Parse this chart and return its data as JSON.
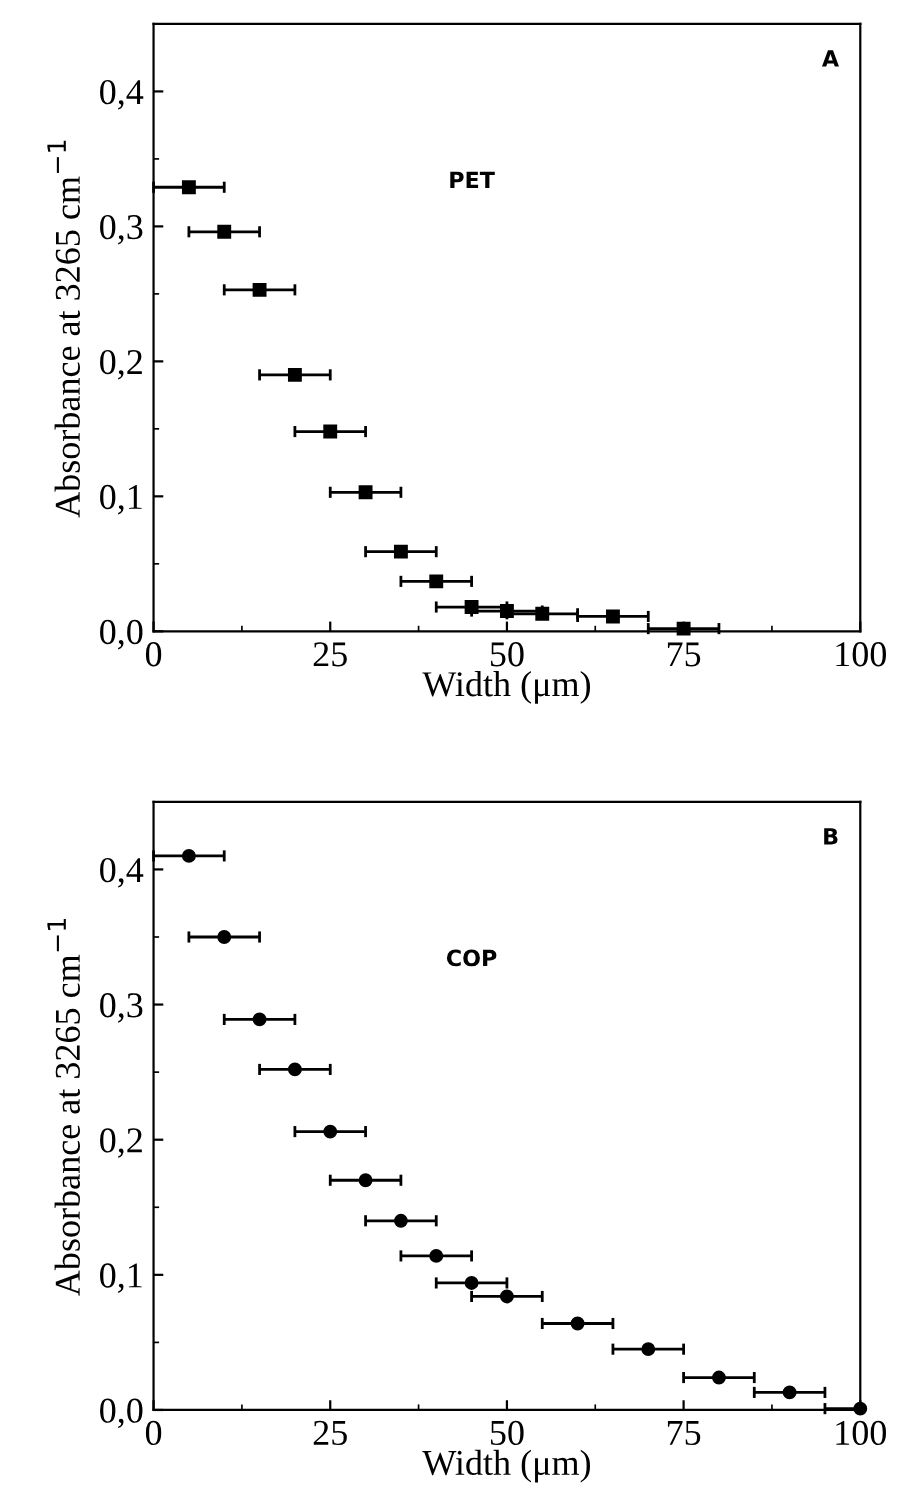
{
  "chart_data": [
    {
      "type": "scatter",
      "xlabel": "Width (μm)",
      "ylabel": "Absorbance at 3265 cm$^{−1}$",
      "marker": "square",
      "x": [
        5,
        10,
        15,
        20,
        25,
        30,
        35,
        40,
        45,
        50,
        55,
        65,
        75
      ],
      "values": [
        0.329,
        0.296,
        0.253,
        0.19,
        0.148,
        0.103,
        0.059,
        0.037,
        0.018,
        0.015,
        0.013,
        0.011,
        0.002
      ],
      "xerrors": [
        5,
        5,
        5,
        5,
        5,
        5,
        5,
        5,
        5,
        5,
        5,
        5,
        5
      ],
      "color": "#000000",
      "xlim": [
        0,
        100
      ],
      "xticks": [
        0,
        25,
        50,
        75,
        100
      ],
      "ylim": [
        0,
        0.45
      ],
      "yticks": [
        {
          "value": 0,
          "label": "0,0"
        },
        {
          "value": 0.1,
          "label": "0,1"
        },
        {
          "value": 0.2,
          "label": "0,2"
        },
        {
          "value": 0.3,
          "label": "0,3"
        },
        {
          "value": 0.4,
          "label": "0,4"
        }
      ],
      "annotations": [
        "A",
        "PET"
      ],
      "grid": false
    },
    {
      "type": "scatter",
      "xlabel": "Width (μm)",
      "ylabel": "Absorbance at 3265 cm$^{−1}$",
      "marker": "circle",
      "x": [
        5,
        10,
        15,
        20,
        25,
        30,
        35,
        40,
        45,
        50,
        60,
        70,
        80,
        90,
        100
      ],
      "values": [
        0.41,
        0.35,
        0.289,
        0.252,
        0.206,
        0.17,
        0.14,
        0.114,
        0.094,
        0.084,
        0.064,
        0.045,
        0.024,
        0.013,
        0.001
      ],
      "xerrors": [
        5,
        5,
        5,
        5,
        5,
        5,
        5,
        5,
        5,
        5,
        5,
        5,
        5,
        5,
        [
          95,
          100
        ]
      ],
      "color": "#000000",
      "xlim": [
        0,
        100
      ],
      "xticks": [
        0,
        25,
        50,
        75,
        100
      ],
      "ylim": [
        0,
        0.45
      ],
      "yticks": [
        {
          "value": 0,
          "label": "0,0"
        },
        {
          "value": 0.1,
          "label": "0,1"
        },
        {
          "value": 0.2,
          "label": "0,2"
        },
        {
          "value": 0.3,
          "label": "0,3"
        },
        {
          "value": 0.4,
          "label": "0,4"
        }
      ],
      "annotations": [
        "B",
        "COP"
      ],
      "grid": false
    }
  ]
}
